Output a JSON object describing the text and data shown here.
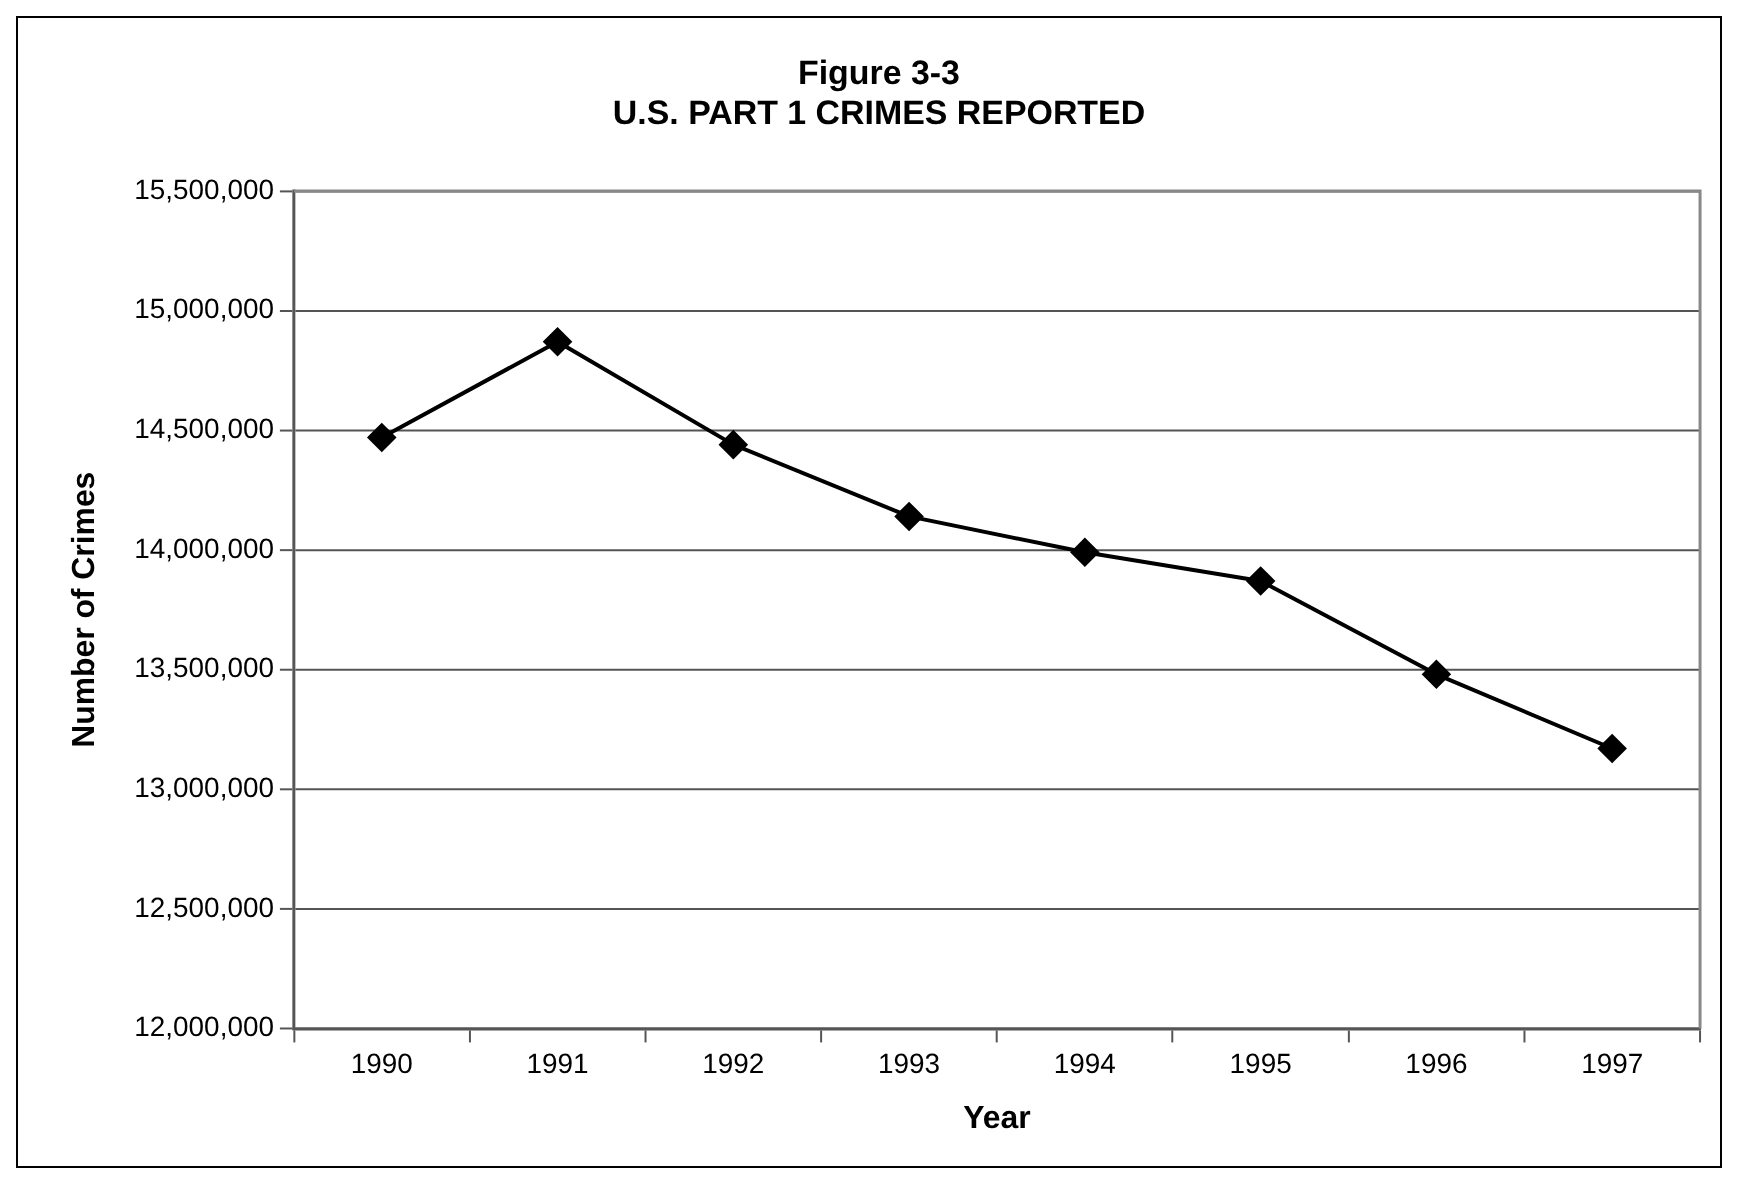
{
  "chart_data": {
    "type": "line",
    "title": "Figure 3-3\nU.S. PART 1 CRIMES REPORTED",
    "xlabel": "Year",
    "ylabel": "Number of Crimes",
    "categories": [
      "1990",
      "1991",
      "1992",
      "1993",
      "1994",
      "1995",
      "1996",
      "1997"
    ],
    "series": [
      {
        "color": "#000000",
        "values": [
          14470000,
          14870000,
          14440000,
          14140000,
          13990000,
          13870000,
          13480000,
          13170000
        ]
      }
    ],
    "ylim": [
      12000000,
      15500000
    ],
    "yticks": [
      {
        "value": 12000000,
        "label": "12,000,000"
      },
      {
        "value": 12500000,
        "label": "12,500,000"
      },
      {
        "value": 13000000,
        "label": "13,000,000"
      },
      {
        "value": 13500000,
        "label": "13,500,000"
      },
      {
        "value": 14000000,
        "label": "14,000,000"
      },
      {
        "value": 14500000,
        "label": "14,500,000"
      },
      {
        "value": 15000000,
        "label": "15,000,000"
      },
      {
        "value": 15500000,
        "label": "15,500,000"
      }
    ],
    "grid": "y",
    "legend": false,
    "marker": "diamond",
    "line_style": "solid"
  }
}
